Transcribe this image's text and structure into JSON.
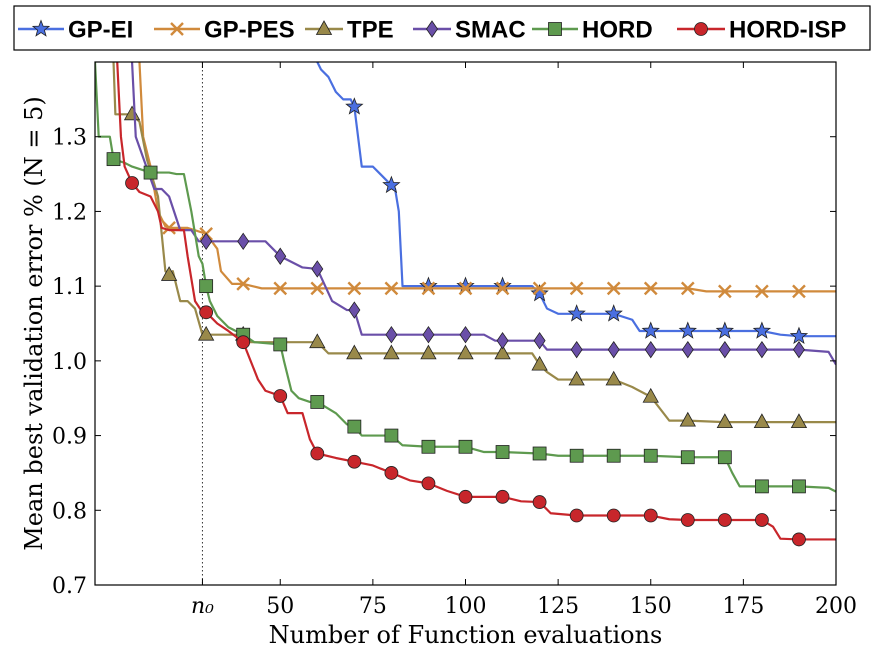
{
  "chart_data": {
    "type": "line",
    "xlabel": "Number of Function evaluations",
    "ylabel": "Mean best validation error % (N = 5)",
    "xlim": [
      0,
      200
    ],
    "ylim": [
      0.7,
      1.4
    ],
    "x_ticks": [
      {
        "value": 29,
        "label": "n₀",
        "italic": true
      },
      {
        "value": 50,
        "label": "50"
      },
      {
        "value": 75,
        "label": "75"
      },
      {
        "value": 100,
        "label": "100"
      },
      {
        "value": 125,
        "label": "125"
      },
      {
        "value": 150,
        "label": "150"
      },
      {
        "value": 175,
        "label": "175"
      },
      {
        "value": 200,
        "label": "200"
      }
    ],
    "y_ticks": [
      {
        "value": 0.7,
        "label": "0.7"
      },
      {
        "value": 0.8,
        "label": "0.8"
      },
      {
        "value": 0.9,
        "label": "0.9"
      },
      {
        "value": 1.0,
        "label": "1.0"
      },
      {
        "value": 1.1,
        "label": "1.1"
      },
      {
        "value": 1.2,
        "label": "1.2"
      },
      {
        "value": 1.3,
        "label": "1.3"
      }
    ],
    "reference_line": {
      "x": 29,
      "style": "dotted"
    },
    "grid": false,
    "legend_position": "top",
    "series": [
      {
        "name": "GP-EI",
        "color": "#4a6fe0",
        "marker": "star",
        "points": [
          [
            60,
            1.4
          ],
          [
            61,
            1.39
          ],
          [
            63,
            1.38
          ],
          [
            65,
            1.36
          ],
          [
            67,
            1.35
          ],
          [
            69,
            1.35
          ],
          [
            70,
            1.34
          ],
          [
            72,
            1.26
          ],
          [
            75,
            1.26
          ],
          [
            77,
            1.25
          ],
          [
            79,
            1.24
          ],
          [
            81,
            1.23
          ],
          [
            82,
            1.2
          ],
          [
            83,
            1.1
          ],
          [
            90,
            1.1
          ],
          [
            100,
            1.1
          ],
          [
            110,
            1.1
          ],
          [
            118,
            1.1
          ],
          [
            120,
            1.09
          ],
          [
            122,
            1.07
          ],
          [
            125,
            1.063
          ],
          [
            130,
            1.063
          ],
          [
            140,
            1.063
          ],
          [
            145,
            1.055
          ],
          [
            147,
            1.04
          ],
          [
            150,
            1.04
          ],
          [
            160,
            1.04
          ],
          [
            170,
            1.04
          ],
          [
            180,
            1.04
          ],
          [
            185,
            1.035
          ],
          [
            190,
            1.033
          ],
          [
            200,
            1.033
          ]
        ],
        "markers_x": [
          70,
          80,
          90,
          100,
          110,
          120,
          130,
          140,
          150,
          160,
          170,
          180,
          190
        ]
      },
      {
        "name": "GP-PES",
        "color": "#d08a3c",
        "marker": "cross",
        "points": [
          [
            12,
            1.4
          ],
          [
            13,
            1.3
          ],
          [
            15,
            1.26
          ],
          [
            17,
            1.2
          ],
          [
            19,
            1.18
          ],
          [
            20,
            1.178
          ],
          [
            25,
            1.178
          ],
          [
            30,
            1.17
          ],
          [
            33,
            1.15
          ],
          [
            34,
            1.12
          ],
          [
            37,
            1.103
          ],
          [
            40,
            1.103
          ],
          [
            45,
            1.097
          ],
          [
            50,
            1.097
          ],
          [
            60,
            1.097
          ],
          [
            70,
            1.097
          ],
          [
            80,
            1.097
          ],
          [
            90,
            1.097
          ],
          [
            100,
            1.097
          ],
          [
            110,
            1.097
          ],
          [
            120,
            1.097
          ],
          [
            130,
            1.097
          ],
          [
            140,
            1.097
          ],
          [
            150,
            1.097
          ],
          [
            160,
            1.097
          ],
          [
            165,
            1.093
          ],
          [
            170,
            1.093
          ],
          [
            180,
            1.093
          ],
          [
            190,
            1.093
          ],
          [
            200,
            1.093
          ]
        ],
        "markers_x": [
          20,
          30,
          40,
          50,
          60,
          70,
          80,
          90,
          100,
          110,
          120,
          130,
          140,
          150,
          160,
          170,
          180,
          190
        ]
      },
      {
        "name": "TPE",
        "color": "#99894a",
        "marker": "triangle",
        "points": [
          [
            5,
            1.4
          ],
          [
            5.5,
            1.33
          ],
          [
            10,
            1.33
          ],
          [
            12,
            1.32
          ],
          [
            14,
            1.27
          ],
          [
            17,
            1.22
          ],
          [
            19,
            1.12
          ],
          [
            20,
            1.115
          ],
          [
            21,
            1.12
          ],
          [
            23,
            1.08
          ],
          [
            25,
            1.08
          ],
          [
            27,
            1.07
          ],
          [
            29,
            1.035
          ],
          [
            30,
            1.035
          ],
          [
            40,
            1.035
          ],
          [
            42,
            1.025
          ],
          [
            60,
            1.025
          ],
          [
            63,
            1.01
          ],
          [
            70,
            1.01
          ],
          [
            80,
            1.01
          ],
          [
            90,
            1.01
          ],
          [
            100,
            1.01
          ],
          [
            110,
            1.01
          ],
          [
            118,
            1.01
          ],
          [
            120,
            0.995
          ],
          [
            122,
            0.985
          ],
          [
            125,
            0.975
          ],
          [
            130,
            0.975
          ],
          [
            140,
            0.975
          ],
          [
            145,
            0.965
          ],
          [
            150,
            0.952
          ],
          [
            155,
            0.92
          ],
          [
            160,
            0.92
          ],
          [
            170,
            0.918
          ],
          [
            180,
            0.918
          ],
          [
            190,
            0.918
          ],
          [
            200,
            0.918
          ]
        ],
        "markers_x": [
          10,
          20,
          30,
          40,
          60,
          70,
          80,
          90,
          100,
          110,
          120,
          130,
          140,
          150,
          160,
          170,
          180,
          190
        ]
      },
      {
        "name": "SMAC",
        "color": "#6a4fa8",
        "marker": "diamond",
        "points": [
          [
            10,
            1.4
          ],
          [
            11,
            1.3
          ],
          [
            16,
            1.23
          ],
          [
            18,
            1.23
          ],
          [
            20,
            1.22
          ],
          [
            23,
            1.175
          ],
          [
            26,
            1.175
          ],
          [
            28,
            1.16
          ],
          [
            30,
            1.16
          ],
          [
            40,
            1.16
          ],
          [
            46,
            1.16
          ],
          [
            50,
            1.14
          ],
          [
            56,
            1.125
          ],
          [
            60,
            1.123
          ],
          [
            64,
            1.08
          ],
          [
            68,
            1.068
          ],
          [
            70,
            1.068
          ],
          [
            72,
            1.035
          ],
          [
            80,
            1.035
          ],
          [
            90,
            1.035
          ],
          [
            100,
            1.035
          ],
          [
            105,
            1.035
          ],
          [
            108,
            1.027
          ],
          [
            110,
            1.027
          ],
          [
            120,
            1.027
          ],
          [
            122,
            1.015
          ],
          [
            130,
            1.015
          ],
          [
            140,
            1.015
          ],
          [
            150,
            1.015
          ],
          [
            160,
            1.015
          ],
          [
            170,
            1.015
          ],
          [
            180,
            1.015
          ],
          [
            190,
            1.015
          ],
          [
            198,
            1.012
          ],
          [
            200,
            0.995
          ]
        ],
        "markers_x": [
          30,
          40,
          50,
          60,
          70,
          80,
          90,
          100,
          110,
          120,
          130,
          140,
          150,
          160,
          170,
          180,
          190
        ]
      },
      {
        "name": "HORD",
        "color": "#5e9a4f",
        "marker": "square",
        "points": [
          [
            0,
            1.4
          ],
          [
            1,
            1.3
          ],
          [
            4,
            1.3
          ],
          [
            5,
            1.27
          ],
          [
            8,
            1.265
          ],
          [
            10,
            1.26
          ],
          [
            15,
            1.252
          ],
          [
            20,
            1.252
          ],
          [
            22,
            1.25
          ],
          [
            24,
            1.25
          ],
          [
            26,
            1.2
          ],
          [
            28,
            1.14
          ],
          [
            29,
            1.13
          ],
          [
            30,
            1.1
          ],
          [
            31,
            1.08
          ],
          [
            33,
            1.06
          ],
          [
            36,
            1.045
          ],
          [
            40,
            1.035
          ],
          [
            43,
            1.025
          ],
          [
            50,
            1.022
          ],
          [
            51,
            1.0
          ],
          [
            53,
            0.96
          ],
          [
            55,
            0.95
          ],
          [
            58,
            0.945
          ],
          [
            60,
            0.945
          ],
          [
            65,
            0.93
          ],
          [
            68,
            0.915
          ],
          [
            70,
            0.912
          ],
          [
            72,
            0.9
          ],
          [
            80,
            0.9
          ],
          [
            83,
            0.887
          ],
          [
            90,
            0.885
          ],
          [
            100,
            0.885
          ],
          [
            105,
            0.878
          ],
          [
            110,
            0.878
          ],
          [
            120,
            0.876
          ],
          [
            125,
            0.873
          ],
          [
            130,
            0.873
          ],
          [
            140,
            0.873
          ],
          [
            150,
            0.873
          ],
          [
            155,
            0.872
          ],
          [
            160,
            0.871
          ],
          [
            170,
            0.871
          ],
          [
            172,
            0.85
          ],
          [
            174,
            0.832
          ],
          [
            180,
            0.832
          ],
          [
            190,
            0.832
          ],
          [
            198,
            0.83
          ],
          [
            200,
            0.825
          ]
        ],
        "markers_x": [
          5,
          15,
          30,
          40,
          50,
          60,
          70,
          80,
          90,
          100,
          110,
          120,
          130,
          140,
          150,
          160,
          170,
          180,
          190
        ]
      },
      {
        "name": "HORD-ISP",
        "color": "#c8262b",
        "marker": "circle",
        "points": [
          [
            6,
            1.4
          ],
          [
            7,
            1.3
          ],
          [
            8,
            1.26
          ],
          [
            10,
            1.238
          ],
          [
            12,
            1.226
          ],
          [
            15,
            1.22
          ],
          [
            17,
            1.2
          ],
          [
            18,
            1.178
          ],
          [
            20,
            1.175
          ],
          [
            24,
            1.175
          ],
          [
            25,
            1.14
          ],
          [
            27,
            1.08
          ],
          [
            29,
            1.065
          ],
          [
            30,
            1.065
          ],
          [
            33,
            1.05
          ],
          [
            36,
            1.04
          ],
          [
            40,
            1.025
          ],
          [
            42,
            1.0
          ],
          [
            44,
            0.975
          ],
          [
            46,
            0.96
          ],
          [
            50,
            0.953
          ],
          [
            52,
            0.93
          ],
          [
            56,
            0.93
          ],
          [
            58,
            0.895
          ],
          [
            60,
            0.876
          ],
          [
            65,
            0.87
          ],
          [
            70,
            0.865
          ],
          [
            75,
            0.86
          ],
          [
            80,
            0.85
          ],
          [
            85,
            0.84
          ],
          [
            90,
            0.836
          ],
          [
            95,
            0.826
          ],
          [
            100,
            0.818
          ],
          [
            110,
            0.818
          ],
          [
            115,
            0.812
          ],
          [
            120,
            0.811
          ],
          [
            123,
            0.796
          ],
          [
            130,
            0.793
          ],
          [
            140,
            0.793
          ],
          [
            150,
            0.793
          ],
          [
            155,
            0.788
          ],
          [
            160,
            0.787
          ],
          [
            170,
            0.787
          ],
          [
            180,
            0.787
          ],
          [
            183,
            0.778
          ],
          [
            185,
            0.762
          ],
          [
            190,
            0.761
          ],
          [
            200,
            0.761
          ]
        ],
        "markers_x": [
          10,
          30,
          40,
          50,
          60,
          70,
          80,
          90,
          100,
          110,
          120,
          130,
          140,
          150,
          160,
          170,
          180,
          190
        ]
      }
    ]
  }
}
